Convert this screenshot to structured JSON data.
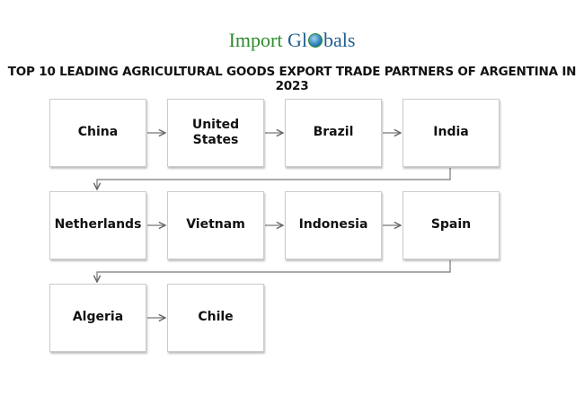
{
  "logo": {
    "part1": "Import",
    "part2": "Gl",
    "part3": "bals"
  },
  "title": "TOP 10 LEADING AGRICULTURAL GOODS EXPORT TRADE PARTNERS OF ARGENTINA IN 2023",
  "partners": [
    "China",
    "United States",
    "Brazil",
    "India",
    "Netherlands",
    "Vietnam",
    "Indonesia",
    "Spain",
    "Algeria",
    "Chile"
  ]
}
